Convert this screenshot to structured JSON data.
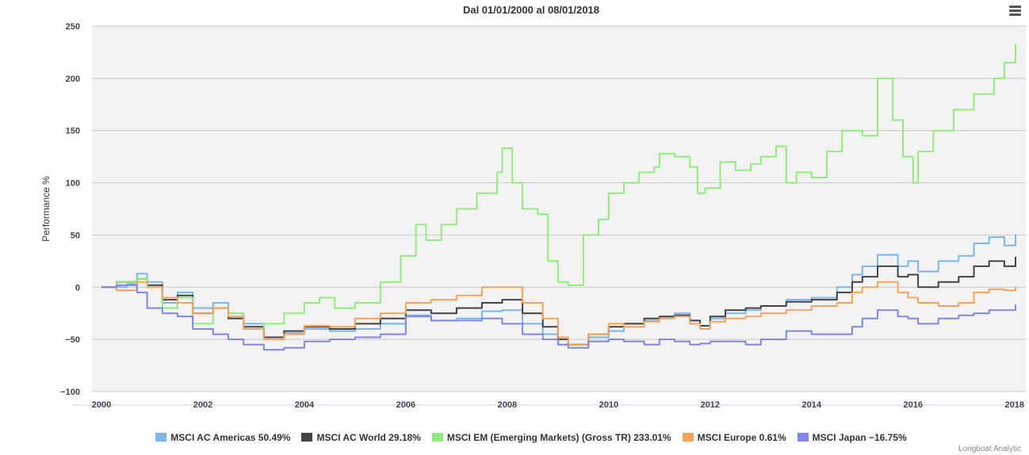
{
  "chart_data": {
    "type": "line",
    "title": "Dal 01/01/2000 al 08/01/2018",
    "xlabel": "",
    "ylabel": "Performance %",
    "xlim": [
      2000.0,
      2018.02
    ],
    "ylim": [
      -100,
      250
    ],
    "x_ticks": [
      "2000",
      "2002",
      "2004",
      "2006",
      "2008",
      "2010",
      "2012",
      "2014",
      "2016",
      "2018"
    ],
    "y_ticks": [
      "250",
      "200",
      "150",
      "100",
      "50",
      "0",
      "−50",
      "−100"
    ],
    "grid": true,
    "legend_position": "bottom",
    "series": [
      {
        "name": "MSCI AC Americas 50.49%",
        "color": "#7cb5ec",
        "x": [
          2000.0,
          2000.5,
          2000.7,
          2000.9,
          2001.2,
          2001.5,
          2001.8,
          2002.2,
          2002.5,
          2002.8,
          2003.2,
          2003.6,
          2004.0,
          2004.5,
          2005.0,
          2005.5,
          2006.0,
          2006.5,
          2007.0,
          2007.5,
          2007.9,
          2008.3,
          2008.7,
          2009.0,
          2009.2,
          2009.6,
          2010.0,
          2010.3,
          2010.7,
          2011.0,
          2011.3,
          2011.6,
          2011.8,
          2012.0,
          2012.3,
          2012.7,
          2013.0,
          2013.5,
          2014.0,
          2014.5,
          2014.8,
          2015.0,
          2015.3,
          2015.7,
          2015.9,
          2016.1,
          2016.5,
          2016.9,
          2017.2,
          2017.5,
          2017.8,
          2018.02
        ],
        "values": [
          0,
          3,
          13,
          5,
          -15,
          -5,
          -20,
          -15,
          -25,
          -35,
          -48,
          -44,
          -40,
          -42,
          -40,
          -35,
          -27,
          -32,
          -30,
          -23,
          -22,
          -35,
          -45,
          -55,
          -55,
          -48,
          -42,
          -35,
          -32,
          -28,
          -25,
          -32,
          -37,
          -30,
          -25,
          -22,
          -18,
          -12,
          -10,
          0,
          12,
          20,
          31,
          20,
          25,
          15,
          25,
          30,
          42,
          48,
          40,
          50.49
        ]
      },
      {
        "name": "MSCI AC World 29.18%",
        "color": "#434348",
        "x": [
          2000.0,
          2000.3,
          2000.7,
          2000.9,
          2001.2,
          2001.5,
          2001.8,
          2002.2,
          2002.5,
          2002.8,
          2003.2,
          2003.6,
          2004.0,
          2004.5,
          2005.0,
          2005.5,
          2006.0,
          2006.5,
          2007.0,
          2007.5,
          2007.9,
          2008.3,
          2008.7,
          2009.0,
          2009.2,
          2009.6,
          2010.0,
          2010.3,
          2010.7,
          2011.0,
          2011.3,
          2011.6,
          2011.8,
          2012.0,
          2012.3,
          2012.7,
          2013.0,
          2013.5,
          2014.0,
          2014.5,
          2014.8,
          2015.0,
          2015.3,
          2015.7,
          2015.9,
          2016.1,
          2016.5,
          2016.9,
          2017.2,
          2017.5,
          2017.8,
          2018.02
        ],
        "values": [
          0,
          5,
          8,
          2,
          -12,
          -8,
          -25,
          -20,
          -30,
          -38,
          -48,
          -42,
          -38,
          -40,
          -35,
          -30,
          -22,
          -25,
          -20,
          -15,
          -12,
          -25,
          -38,
          -50,
          -55,
          -45,
          -38,
          -35,
          -30,
          -28,
          -27,
          -32,
          -37,
          -28,
          -22,
          -20,
          -18,
          -14,
          -12,
          -5,
          5,
          10,
          20,
          10,
          12,
          0,
          5,
          10,
          20,
          25,
          20,
          29.18
        ]
      },
      {
        "name": "MSCI EM (Emerging Markets) (Gross TR) 233.01%",
        "color": "#90ed7d",
        "x": [
          2000.0,
          2000.3,
          2000.7,
          2000.9,
          2001.2,
          2001.5,
          2001.8,
          2002.2,
          2002.5,
          2002.8,
          2003.2,
          2003.6,
          2004.0,
          2004.3,
          2004.6,
          2005.0,
          2005.5,
          2005.9,
          2006.2,
          2006.4,
          2006.7,
          2007.0,
          2007.4,
          2007.8,
          2007.9,
          2008.1,
          2008.3,
          2008.6,
          2008.8,
          2009.0,
          2009.2,
          2009.5,
          2009.8,
          2010.0,
          2010.3,
          2010.6,
          2010.9,
          2011.0,
          2011.3,
          2011.6,
          2011.75,
          2011.9,
          2012.2,
          2012.5,
          2012.8,
          2013.0,
          2013.3,
          2013.5,
          2013.7,
          2014.0,
          2014.3,
          2014.6,
          2015.0,
          2015.3,
          2015.6,
          2015.8,
          2016.0,
          2016.1,
          2016.4,
          2016.8,
          2017.2,
          2017.6,
          2017.8,
          2018.02
        ],
        "values": [
          0,
          5,
          8,
          0,
          -20,
          -10,
          -35,
          -20,
          -25,
          -40,
          -35,
          -25,
          -15,
          -10,
          -20,
          -15,
          5,
          30,
          60,
          45,
          60,
          75,
          90,
          110,
          133,
          100,
          75,
          70,
          25,
          5,
          2,
          50,
          65,
          90,
          100,
          110,
          115,
          128,
          125,
          115,
          90,
          95,
          120,
          112,
          118,
          125,
          135,
          100,
          110,
          105,
          130,
          150,
          145,
          200,
          160,
          125,
          100,
          130,
          150,
          170,
          185,
          200,
          215,
          233.01
        ]
      },
      {
        "name": "MSCI Europe 0.61%",
        "color": "#f7a35c",
        "x": [
          2000.0,
          2000.3,
          2000.7,
          2000.9,
          2001.2,
          2001.5,
          2001.8,
          2002.2,
          2002.5,
          2002.8,
          2003.2,
          2003.6,
          2004.0,
          2004.5,
          2005.0,
          2005.5,
          2006.0,
          2006.5,
          2007.0,
          2007.5,
          2007.9,
          2008.3,
          2008.7,
          2009.0,
          2009.2,
          2009.6,
          2010.0,
          2010.3,
          2010.7,
          2011.0,
          2011.3,
          2011.6,
          2011.8,
          2012.0,
          2012.3,
          2012.7,
          2013.0,
          2013.5,
          2014.0,
          2014.5,
          2014.8,
          2015.0,
          2015.3,
          2015.7,
          2015.9,
          2016.1,
          2016.5,
          2016.9,
          2017.2,
          2017.5,
          2017.8,
          2018.02
        ],
        "values": [
          0,
          -3,
          5,
          0,
          -10,
          -15,
          -25,
          -20,
          -28,
          -40,
          -50,
          -45,
          -37,
          -38,
          -30,
          -25,
          -15,
          -12,
          -8,
          0,
          0,
          -15,
          -30,
          -48,
          -55,
          -45,
          -35,
          -38,
          -33,
          -30,
          -28,
          -35,
          -40,
          -33,
          -30,
          -28,
          -25,
          -22,
          -18,
          -15,
          -5,
          0,
          5,
          -5,
          -10,
          -15,
          -18,
          -15,
          -5,
          -2,
          -3,
          0.61
        ]
      },
      {
        "name": "MSCI Japan −16.75%",
        "color": "#8085e9",
        "x": [
          2000.0,
          2000.3,
          2000.7,
          2000.9,
          2001.2,
          2001.5,
          2001.8,
          2002.2,
          2002.5,
          2002.8,
          2003.2,
          2003.6,
          2004.0,
          2004.5,
          2005.0,
          2005.5,
          2006.0,
          2006.5,
          2007.0,
          2007.5,
          2007.9,
          2008.3,
          2008.7,
          2009.0,
          2009.2,
          2009.6,
          2010.0,
          2010.3,
          2010.7,
          2011.0,
          2011.3,
          2011.6,
          2011.8,
          2012.0,
          2012.3,
          2012.7,
          2013.0,
          2013.5,
          2014.0,
          2014.5,
          2014.8,
          2015.0,
          2015.3,
          2015.7,
          2015.9,
          2016.1,
          2016.5,
          2016.9,
          2017.2,
          2017.5,
          2017.8,
          2018.02
        ],
        "values": [
          0,
          2,
          -5,
          -20,
          -25,
          -28,
          -40,
          -45,
          -50,
          -55,
          -60,
          -58,
          -52,
          -50,
          -48,
          -45,
          -28,
          -32,
          -32,
          -30,
          -35,
          -45,
          -50,
          -55,
          -58,
          -52,
          -50,
          -52,
          -55,
          -50,
          -52,
          -55,
          -54,
          -52,
          -52,
          -55,
          -50,
          -42,
          -45,
          -45,
          -38,
          -30,
          -22,
          -28,
          -30,
          -35,
          -30,
          -27,
          -25,
          -22,
          -22,
          -16.75
        ]
      }
    ]
  },
  "menu": {
    "icon": "hamburger-menu-icon"
  },
  "credits": "Longboat Analytic"
}
